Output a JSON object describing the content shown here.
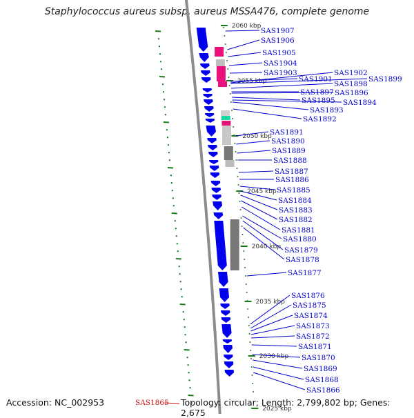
{
  "title": "Staphylococcus aureus subsp. aureus MSSA476, complete genome",
  "accession_text": "Accession: NC_002953",
  "topology_text": "Topology: circular; Length: 2,799,802 bp; Genes: 2,675",
  "highlight_gene": "SAS1865",
  "colors": {
    "backbone": "#8c8c8c",
    "gene_arrow": "#0000ee",
    "label": "#0000cc",
    "highlight": "#d01010",
    "gc_tick": "#1a7a1a",
    "feature_pink": "#e8127a",
    "feature_grey": "#777777",
    "feature_teal": "#16d8a0"
  },
  "kbp_ticks": [
    "2060 kbp",
    "2055 kbp",
    "2050 kbp",
    "2045 kbp",
    "2040 kbp",
    "2035 kbp",
    "2030 kbp",
    "2025 kbp"
  ],
  "gene_labels": [
    "SAS1907",
    "SAS1906",
    "SAS1905",
    "SAS1904",
    "SAS1903",
    "SAS1901",
    "SAS1902",
    "SAS1899",
    "SAS1898",
    "SAS1897",
    "SAS1896",
    "SAS1895",
    "SAS1894",
    "SAS1893",
    "SAS1892",
    "SAS1891",
    "SAS1890",
    "SAS1889",
    "SAS1888",
    "SAS1887",
    "SAS1886",
    "SAS1885",
    "SAS1884",
    "SAS1883",
    "SAS1882",
    "SAS1881",
    "SAS1880",
    "SAS1879",
    "SAS1878",
    "SAS1877",
    "SAS1876",
    "SAS1875",
    "SAS1874",
    "SAS1873",
    "SAS1872",
    "SAS1871",
    "SAS1870",
    "SAS1869",
    "SAS1868",
    "SAS1866"
  ]
}
